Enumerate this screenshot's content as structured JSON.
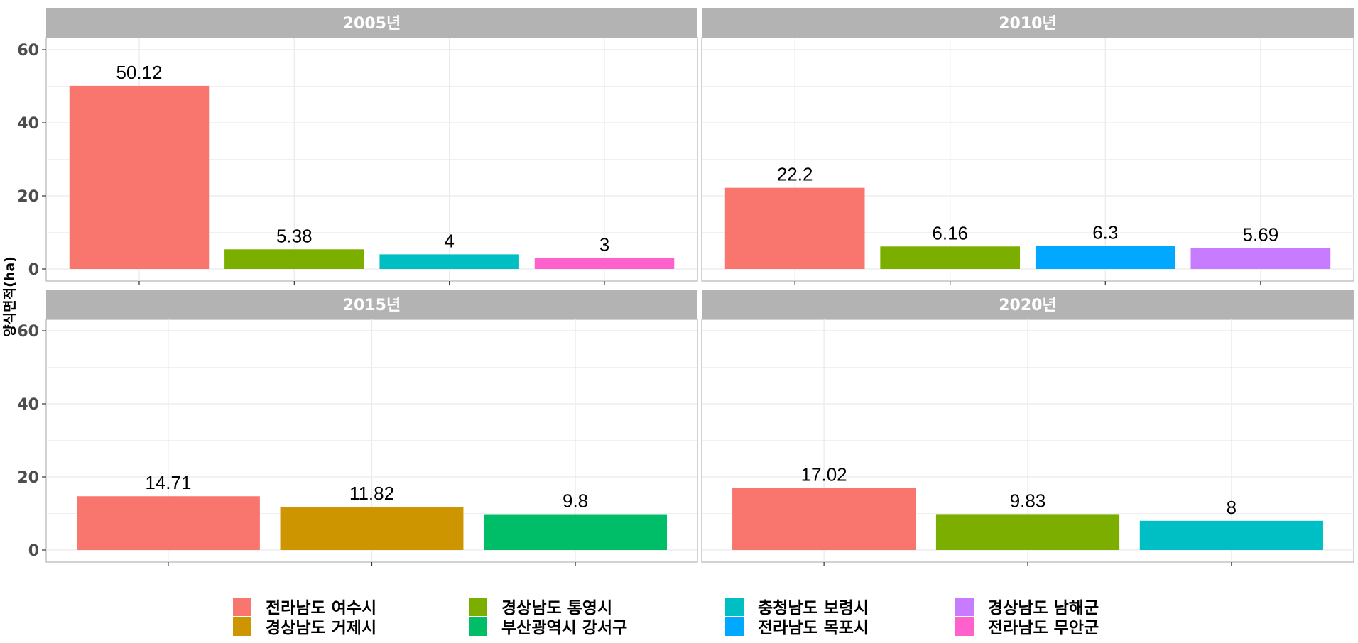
{
  "chart_data": {
    "type": "bar",
    "ylabel": "양식면적(ha)",
    "ylim": [
      0,
      60
    ],
    "yticks": [
      0,
      20,
      40,
      60
    ],
    "grid": true,
    "legend_position": "bottom",
    "panels": [
      {
        "title": "2005년",
        "bars": [
          {
            "region": "전라남도 여수시",
            "value": 50.12,
            "label": "50.12"
          },
          {
            "region": "경상남도 통영시",
            "value": 5.38,
            "label": "5.38"
          },
          {
            "region": "충청남도 보령시",
            "value": 4,
            "label": "4"
          },
          {
            "region": "전라남도 무안군",
            "value": 3,
            "label": "3"
          }
        ]
      },
      {
        "title": "2010년",
        "bars": [
          {
            "region": "전라남도 여수시",
            "value": 22.2,
            "label": "22.2"
          },
          {
            "region": "경상남도 통영시",
            "value": 6.16,
            "label": "6.16"
          },
          {
            "region": "전라남도 목포시",
            "value": 6.3,
            "label": "6.3"
          },
          {
            "region": "경상남도 남해군",
            "value": 5.69,
            "label": "5.69"
          }
        ]
      },
      {
        "title": "2015년",
        "bars": [
          {
            "region": "전라남도 여수시",
            "value": 14.71,
            "label": "14.71"
          },
          {
            "region": "경상남도 거제시",
            "value": 11.82,
            "label": "11.82"
          },
          {
            "region": "부산광역시 강서구",
            "value": 9.8,
            "label": "9.8"
          }
        ]
      },
      {
        "title": "2020년",
        "bars": [
          {
            "region": "전라남도 여수시",
            "value": 17.02,
            "label": "17.02"
          },
          {
            "region": "경상남도 통영시",
            "value": 9.83,
            "label": "9.83"
          },
          {
            "region": "충청남도 보령시",
            "value": 8,
            "label": "8"
          }
        ]
      }
    ],
    "legend": [
      {
        "name": "전라남도 여수시",
        "color": "#F8766D"
      },
      {
        "name": "경상남도 거제시",
        "color": "#CD9600"
      },
      {
        "name": "경상남도 통영시",
        "color": "#7CAE00"
      },
      {
        "name": "부산광역시 강서구",
        "color": "#00BE67"
      },
      {
        "name": "충청남도 보령시",
        "color": "#00BFC4"
      },
      {
        "name": "전라남도 목포시",
        "color": "#00A9FF"
      },
      {
        "name": "경상남도 남해군",
        "color": "#C77CFF"
      },
      {
        "name": "전라남도 무안군",
        "color": "#FF61CC"
      }
    ]
  }
}
